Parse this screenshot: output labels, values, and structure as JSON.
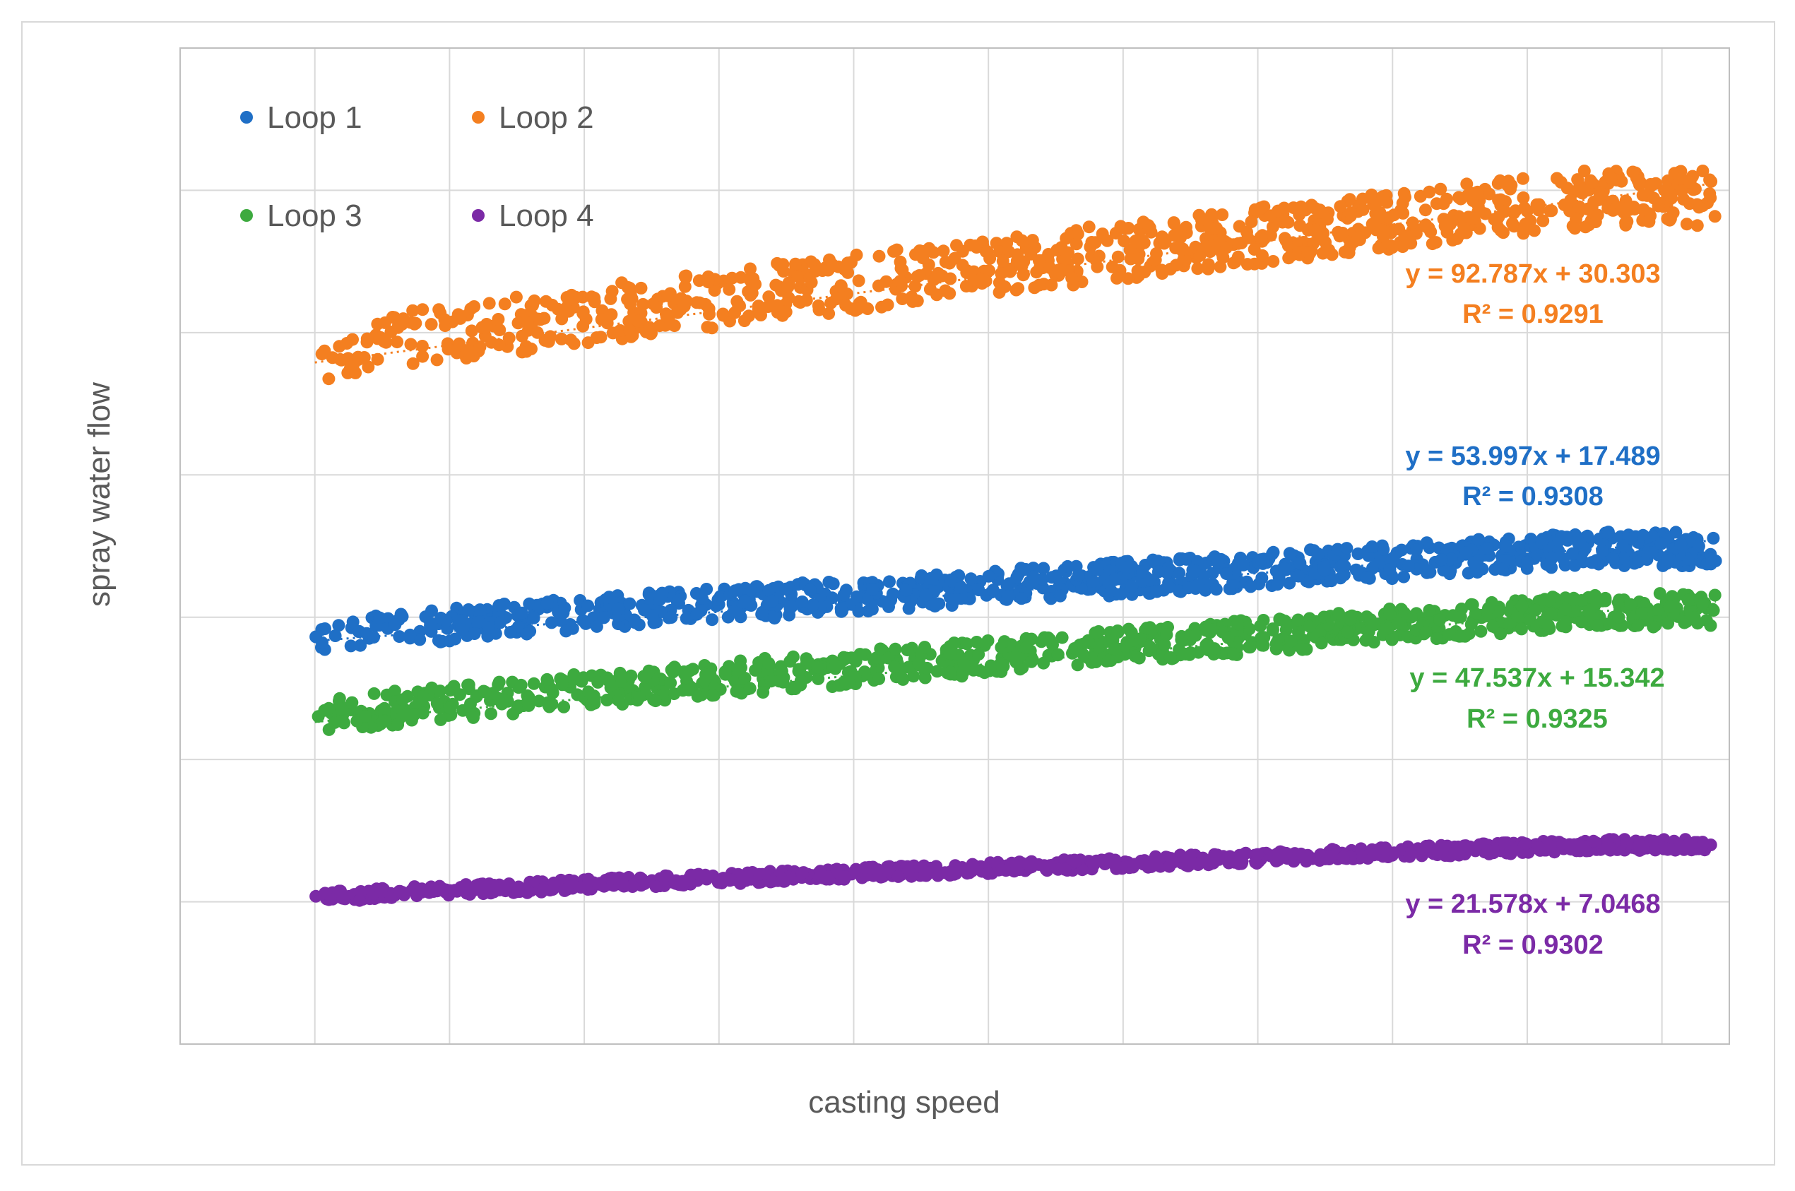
{
  "chart_data": {
    "type": "scatter",
    "title": "",
    "xlabel": "casting speed",
    "ylabel": "spray water flow",
    "xlim": [
      0,
      11.5
    ],
    "ylim": [
      0,
      7
    ],
    "grid": true,
    "legend_placement": "top-left",
    "x_ticks_shown": false,
    "y_ticks_shown": false,
    "series": [
      {
        "name": "Loop 1",
        "color": "#1F6FC6",
        "trendline": {
          "slope": 53.997,
          "intercept": 17.489,
          "r2": 0.9308
        },
        "equation_label": "y = 53.997x + 17.489",
        "r2_label": "R² = 0.9308",
        "points_summary": {
          "x_range": [
            1.0,
            11.4
          ],
          "y_start": 2.87,
          "y_end": 3.48
        }
      },
      {
        "name": "Loop 2",
        "color": "#F47F20",
        "trendline": {
          "slope": 92.787,
          "intercept": 30.303,
          "r2": 0.9291
        },
        "equation_label": "y = 92.787x + 30.303",
        "r2_label": "R² = 0.9291",
        "points_summary": {
          "x_range": [
            1.0,
            11.4
          ],
          "y_start": 4.85,
          "y_end": 5.95
        }
      },
      {
        "name": "Loop 3",
        "color": "#3DAA3F",
        "trendline": {
          "slope": 47.537,
          "intercept": 15.342,
          "r2": 0.9325
        },
        "equation_label": "y = 47.537x + 15.342",
        "r2_label": "R² = 0.9325",
        "points_summary": {
          "x_range": [
            1.0,
            11.4
          ],
          "y_start": 2.3,
          "y_end": 3.05
        }
      },
      {
        "name": "Loop 4",
        "color": "#7B2AA6",
        "trendline": {
          "slope": 21.578,
          "intercept": 7.0468,
          "r2": 0.9302
        },
        "equation_label": "y = 21.578x + 7.0468",
        "r2_label": "R² = 0.9302",
        "points_summary": {
          "x_range": [
            1.0,
            11.4
          ],
          "y_start": 1.03,
          "y_end": 1.4
        }
      }
    ]
  }
}
